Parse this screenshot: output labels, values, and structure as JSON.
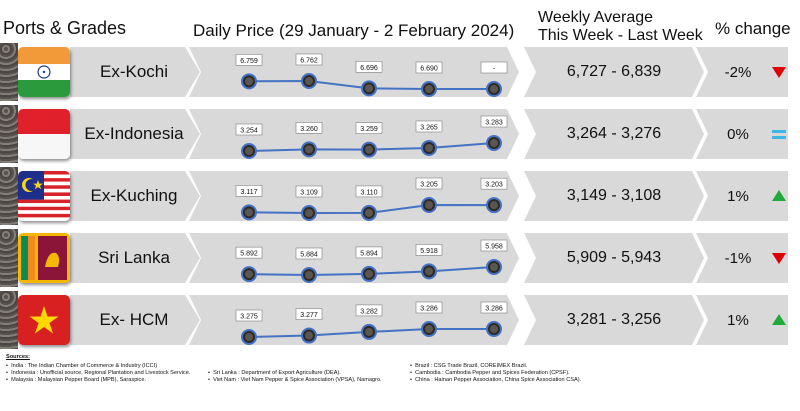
{
  "headers": {
    "ports": "Ports & Grades",
    "daily": "Daily Price (29 January - 2 February 2024)",
    "weekly_line1": "Weekly Average",
    "weekly_line2": "This Week - Last Week",
    "pct": "% change"
  },
  "rows": [
    {
      "name": "Ex-Kochi",
      "flag": "india-flag",
      "prices": [
        "6.759",
        "6.762",
        "6.696",
        "6.690",
        "-"
      ],
      "values": [
        6759,
        6762,
        6696,
        6690,
        null
      ],
      "weekly": "6,727 - 6,839",
      "pct": "-2%",
      "trend": "down",
      "trend_color": "#e00000"
    },
    {
      "name": "Ex-Indonesia",
      "flag": "indonesia-flag",
      "prices": [
        "3.254",
        "3.260",
        "3.259",
        "3.265",
        "3.283"
      ],
      "values": [
        3254,
        3260,
        3259,
        3265,
        3283
      ],
      "weekly": "3,264 - 3,276",
      "pct": "0%",
      "trend": "equal",
      "trend_color": "#3fb6e8"
    },
    {
      "name": "Ex-Kuching",
      "flag": "malaysia-flag",
      "prices": [
        "3.117",
        "3.109",
        "3.110",
        "3.205",
        "3.203"
      ],
      "values": [
        3117,
        3109,
        3110,
        3205,
        3203
      ],
      "weekly": "3,149 - 3,108",
      "pct": "1%",
      "trend": "up",
      "trend_color": "#1faa3a"
    },
    {
      "name": "Sri Lanka",
      "flag": "srilanka-flag",
      "prices": [
        "5.892",
        "5.884",
        "5.894",
        "5.918",
        "5.958"
      ],
      "values": [
        5892,
        5884,
        5894,
        5918,
        5958
      ],
      "weekly": "5,909 - 5,943",
      "pct": "-1%",
      "trend": "down",
      "trend_color": "#e00000"
    },
    {
      "name": "Ex- HCM",
      "flag": "vietnam-flag",
      "prices": [
        "3.275",
        "3.277",
        "3.282",
        "3.286",
        "3.286"
      ],
      "values": [
        3275,
        3277,
        3282,
        3286,
        3286
      ],
      "weekly": "3,281 - 3,256",
      "pct": "1%",
      "trend": "up",
      "trend_color": "#1faa3a"
    }
  ],
  "sources": {
    "title": "Sources:",
    "col1": [
      "India : The Indian Chamber of Commerce & Industry (ICCI)",
      "Indonesia : Unofficial source, Regional Plantation and Livestock Service.",
      "Malaysia : Malaysian Pepper Board (MPB), Saraspice."
    ],
    "col2": [
      "Sri Lanka : Department of Export Agriculture (DEA).",
      "Viet Nam : Viet Nam Pepper & Spice Association (VPSA), Namagro."
    ],
    "col3": [
      "Brazil : CSG Trade Brazil, COREIMEX Brazil.",
      "Cambodia : Cambodia Pepper and Spices Federation (CPSF).",
      "China : Hainan Pepper Association, China Spice Association CSA)."
    ]
  },
  "colors": {
    "panel": "#d9d9d9",
    "line": "#4472c4",
    "down": "#e00000",
    "up": "#1faa3a",
    "equal": "#3fb6e8"
  }
}
